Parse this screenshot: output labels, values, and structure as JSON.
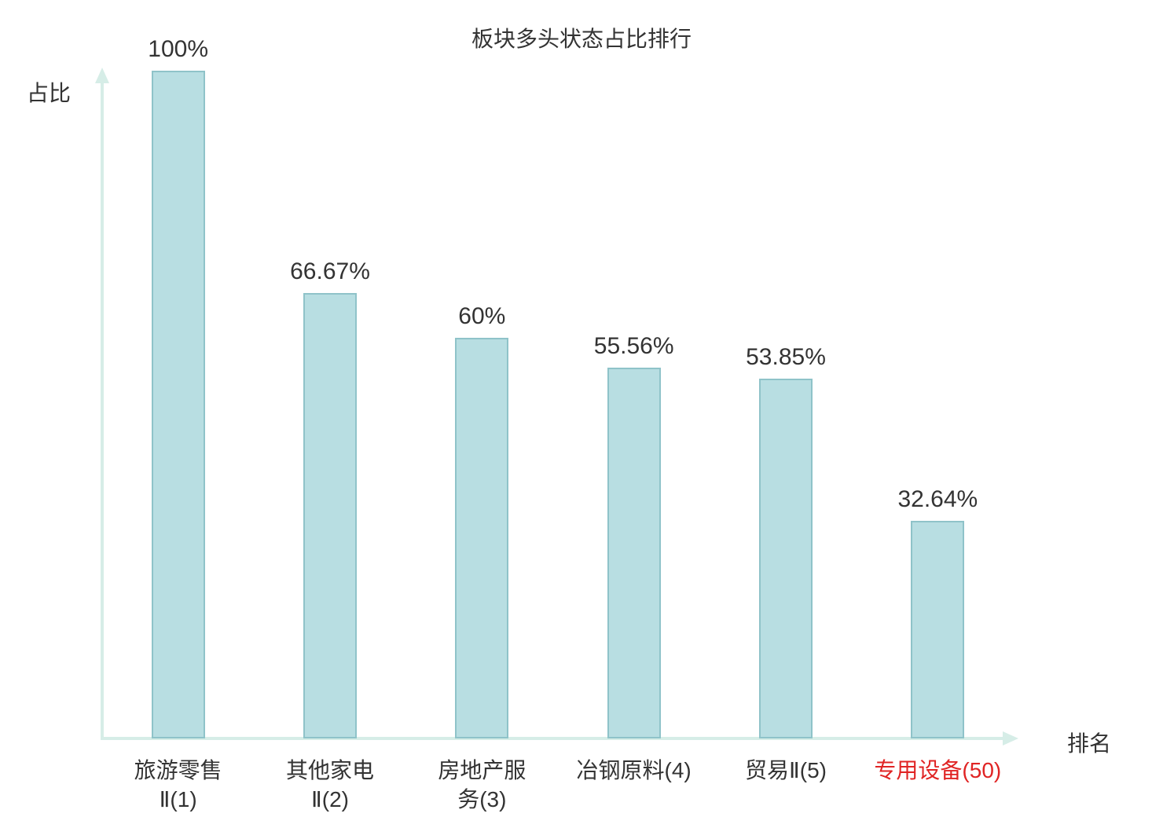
{
  "chart_data": {
    "type": "bar",
    "title": "板块多头状态占比排行",
    "xlabel": "排名",
    "ylabel": "占比",
    "ylim": [
      0,
      100
    ],
    "grid": false,
    "legend": "none",
    "categories": [
      "旅游零售Ⅱ(1)",
      "其他家电Ⅱ(2)",
      "房地产服务(3)",
      "冶钢原料(4)",
      "贸易Ⅱ(5)",
      "专用设备(50)"
    ],
    "values": [
      100,
      66.67,
      60,
      55.56,
      53.85,
      32.64
    ],
    "points": [
      {
        "label": "旅游零售\nⅡ(1)",
        "value": 100,
        "display": "100%",
        "highlight": false
      },
      {
        "label": "其他家电\nⅡ(2)",
        "value": 66.67,
        "display": "66.67%",
        "highlight": false
      },
      {
        "label": "房地产服\n务(3)",
        "value": 60,
        "display": "60%",
        "highlight": false
      },
      {
        "label": "冶钢原料(4)",
        "value": 55.56,
        "display": "55.56%",
        "highlight": false
      },
      {
        "label": "贸易Ⅱ(5)",
        "value": 53.85,
        "display": "53.85%",
        "highlight": false
      },
      {
        "label": "专用设备(50)",
        "value": 32.64,
        "display": "32.64%",
        "highlight": true
      }
    ],
    "colors": {
      "bar_fill": "#b8dee2",
      "bar_border": "#8fc3c9",
      "axis": "#d6ede7",
      "text": "#333333",
      "highlight_text": "#e02424"
    }
  }
}
